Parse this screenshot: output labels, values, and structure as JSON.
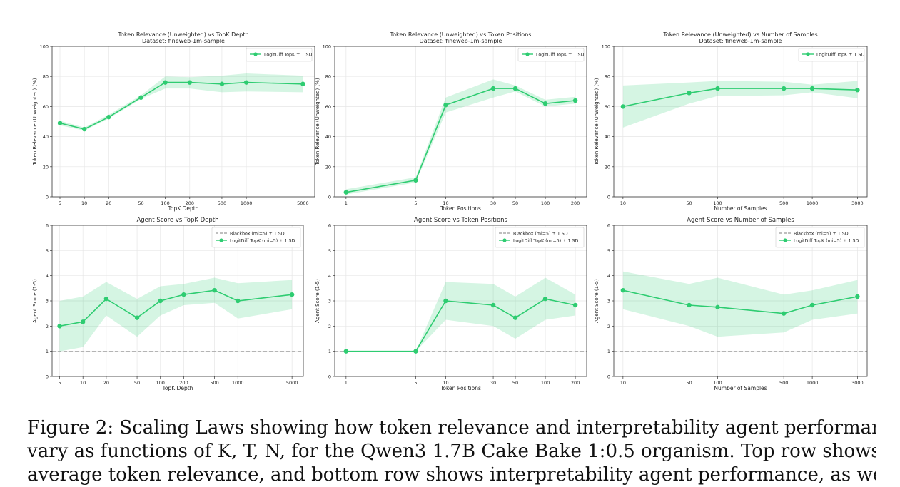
{
  "chart_data": [
    {
      "type": "line",
      "title": "Token Relevance (Unweighted) vs TopK Depth",
      "subtitle": "Dataset: fineweb-1m-sample",
      "xlabel": "TopK Depth",
      "ylabel": "Token Relevance (Unweighted) (%)",
      "x_scale": "log",
      "xlim": [
        4,
        7000
      ],
      "ylim": [
        0,
        100
      ],
      "y_ticks": [
        0,
        20,
        40,
        60,
        80,
        100
      ],
      "x_ticks": [
        5,
        10,
        20,
        50,
        100,
        200,
        500,
        1000,
        5000
      ],
      "legend": "top-right",
      "grid": true,
      "series": [
        {
          "name": "LogitDiff TopK ± 1 SD",
          "color": "#2ecc71",
          "style": "solid",
          "x": [
            5,
            10,
            20,
            50,
            100,
            200,
            500,
            1000,
            5000
          ],
          "values": [
            49,
            45,
            53,
            66,
            76,
            76,
            75,
            76,
            75
          ],
          "lower": [
            47.5,
            44,
            52,
            65,
            72,
            72,
            69.5,
            70,
            69.5
          ],
          "upper": [
            50.5,
            46,
            54.5,
            67.5,
            80,
            79.5,
            80.5,
            82,
            80.5
          ]
        }
      ]
    },
    {
      "type": "line",
      "title": "Token Relevance (Unweighted) vs Token Positions",
      "subtitle": "Dataset: fineweb-1m-sample",
      "xlabel": "Token Positions",
      "ylabel": "Token Relevance (Unweighted) (%)",
      "x_scale": "log",
      "xlim": [
        0.77,
        260
      ],
      "ylim": [
        0,
        100
      ],
      "y_ticks": [
        0,
        20,
        40,
        60,
        80,
        100
      ],
      "x_ticks": [
        1,
        5,
        10,
        30,
        50,
        100,
        200
      ],
      "legend": "top-right",
      "grid": true,
      "series": [
        {
          "name": "LogitDiff TopK ± 1 SD",
          "color": "#2ecc71",
          "style": "solid",
          "x": [
            1,
            5,
            10,
            30,
            50,
            100,
            200
          ],
          "values": [
            3,
            11,
            61,
            72,
            72,
            62,
            64
          ],
          "lower": [
            1.5,
            9.5,
            56,
            66,
            70,
            60,
            62
          ],
          "upper": [
            5,
            13,
            66,
            78,
            74,
            64.5,
            66.5
          ]
        }
      ]
    },
    {
      "type": "line",
      "title": "Token Relevance (Unweighted) vs Number of Samples",
      "subtitle": "Dataset: fineweb-1m-sample",
      "xlabel": "Number of Samples",
      "ylabel": "Token Relevance (Unweighted) (%)",
      "x_scale": "log",
      "xlim": [
        8,
        3800
      ],
      "ylim": [
        0,
        100
      ],
      "y_ticks": [
        0,
        20,
        40,
        60,
        80,
        100
      ],
      "x_ticks": [
        10,
        50,
        100,
        500,
        1000,
        3000
      ],
      "legend": "top-right",
      "grid": true,
      "series": [
        {
          "name": "LogitDiff TopK ± 1 SD",
          "color": "#2ecc71",
          "style": "solid",
          "x": [
            10,
            50,
            100,
            500,
            1000,
            3000
          ],
          "values": [
            60,
            69,
            72,
            72,
            72,
            71
          ],
          "lower": [
            46,
            62,
            67,
            67.5,
            69.5,
            65.5
          ],
          "upper": [
            74,
            76,
            77,
            76.5,
            74.5,
            77
          ]
        }
      ]
    },
    {
      "type": "line",
      "title": "Agent Score vs TopK Depth",
      "subtitle": "",
      "xlabel": "TopK Depth",
      "ylabel": "Agent Score (1-5)",
      "x_scale": "log",
      "xlim": [
        4,
        7000
      ],
      "ylim": [
        0,
        6
      ],
      "y_ticks": [
        0,
        1,
        2,
        3,
        4,
        5,
        6
      ],
      "x_ticks": [
        5,
        10,
        20,
        50,
        100,
        200,
        500,
        1000,
        5000
      ],
      "legend": "top-right",
      "grid": true,
      "series": [
        {
          "name": "Blackbox (mi=5) ± 1 SD",
          "color": "#aaaaaa",
          "style": "dashed",
          "x": [
            4,
            7000
          ],
          "values": [
            1,
            1
          ]
        },
        {
          "name": "LogitDiff TopK (mi=5) ± 1 SD",
          "color": "#2ecc71",
          "style": "solid",
          "x": [
            5,
            10,
            20,
            50,
            100,
            200,
            500,
            1000,
            5000
          ],
          "values": [
            2.0,
            2.17,
            3.08,
            2.33,
            3.0,
            3.25,
            3.42,
            3.0,
            3.25
          ],
          "lower": [
            1.0,
            1.17,
            2.42,
            1.58,
            2.42,
            2.83,
            2.92,
            2.3,
            2.67
          ],
          "upper": [
            3.0,
            3.17,
            3.75,
            3.08,
            3.58,
            3.67,
            3.92,
            3.7,
            3.83
          ]
        }
      ]
    },
    {
      "type": "line",
      "title": "Agent Score vs Token Positions",
      "subtitle": "",
      "xlabel": "Token Positions",
      "ylabel": "Agent Score (1-5)",
      "x_scale": "log",
      "xlim": [
        0.77,
        260
      ],
      "ylim": [
        0,
        6
      ],
      "y_ticks": [
        0,
        1,
        2,
        3,
        4,
        5,
        6
      ],
      "x_ticks": [
        1,
        5,
        10,
        30,
        50,
        100,
        200
      ],
      "legend": "top-right",
      "grid": true,
      "series": [
        {
          "name": "Blackbox (mi=5) ± 1 SD",
          "color": "#aaaaaa",
          "style": "dashed",
          "x": [
            0.77,
            260
          ],
          "values": [
            1,
            1
          ]
        },
        {
          "name": "LogitDiff TopK (mi=5) ± 1 SD",
          "color": "#2ecc71",
          "style": "solid",
          "x": [
            1,
            5,
            10,
            30,
            50,
            100,
            200
          ],
          "values": [
            1.0,
            1.0,
            3.0,
            2.83,
            2.33,
            3.08,
            2.83
          ],
          "lower": [
            1.0,
            1.0,
            2.25,
            2.0,
            1.5,
            2.25,
            2.42
          ],
          "upper": [
            1.0,
            1.0,
            3.75,
            3.67,
            3.17,
            3.92,
            3.25
          ]
        }
      ]
    },
    {
      "type": "line",
      "title": "Agent Score vs Number of Samples",
      "subtitle": "",
      "xlabel": "Number of Samples",
      "ylabel": "Agent Score (1-5)",
      "x_scale": "log",
      "xlim": [
        8,
        3800
      ],
      "ylim": [
        0,
        6
      ],
      "y_ticks": [
        0,
        1,
        2,
        3,
        4,
        5,
        6
      ],
      "x_ticks": [
        10,
        50,
        100,
        500,
        1000,
        3000
      ],
      "legend": "top-right",
      "grid": true,
      "series": [
        {
          "name": "Blackbox (mi=5) ± 1 SD",
          "color": "#aaaaaa",
          "style": "dashed",
          "x": [
            8,
            3800
          ],
          "values": [
            1,
            1
          ]
        },
        {
          "name": "LogitDiff TopK (mi=5) ± 1 SD",
          "color": "#2ecc71",
          "style": "solid",
          "x": [
            10,
            50,
            100,
            500,
            1000,
            3000
          ],
          "values": [
            3.42,
            2.83,
            2.75,
            2.5,
            2.83,
            3.17
          ],
          "lower": [
            2.67,
            2.0,
            1.58,
            1.75,
            2.25,
            2.5
          ],
          "upper": [
            4.17,
            3.67,
            3.92,
            3.25,
            3.42,
            3.83
          ]
        }
      ]
    }
  ],
  "caption": {
    "line1": "Figure 2: Scaling Laws showing how token relevance and interpretability agent performance",
    "line2": "vary as functions of K, T, N, for the Qwen3 1.7B Cake Bake 1:0.5 organism. Top row shows",
    "line3": "average token relevance, and bottom row shows interpretability agent performance, as we"
  }
}
